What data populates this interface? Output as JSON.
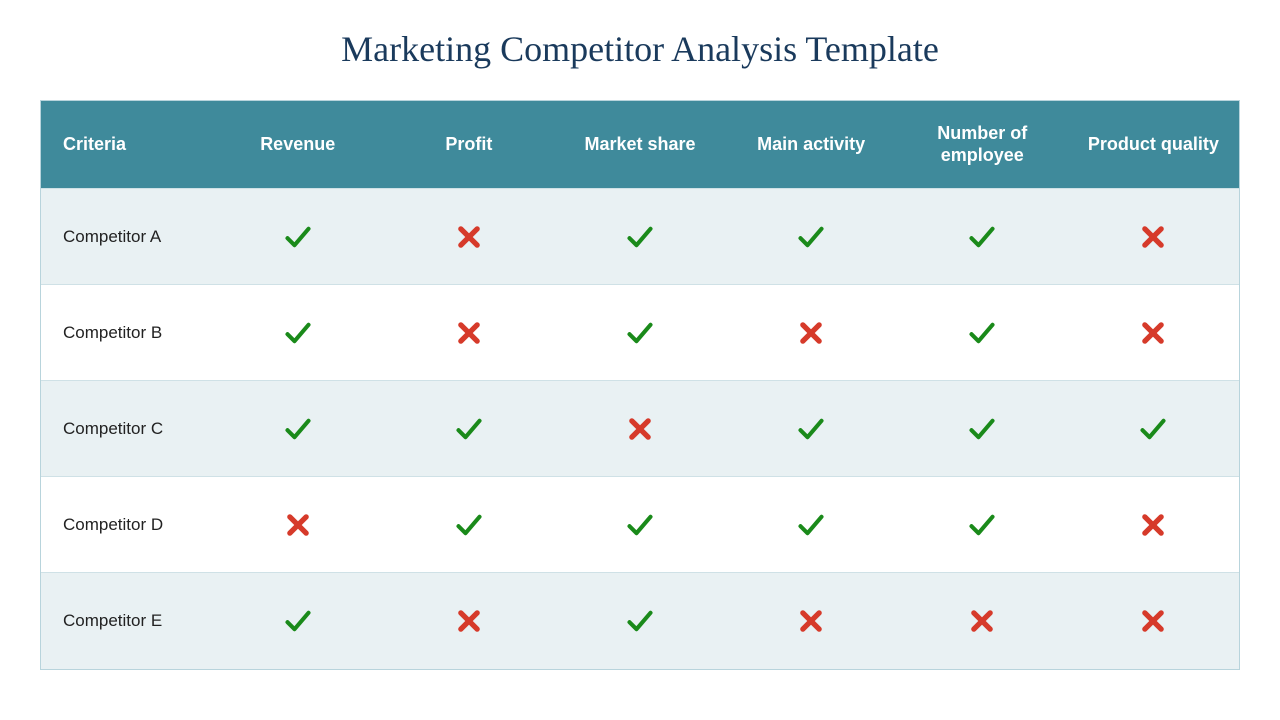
{
  "title": "Marketing Competitor Analysis Template",
  "table": {
    "type": "table",
    "header_bg": "#3f8a9b",
    "header_text_color": "#ffffff",
    "row_odd_bg": "#e9f1f3",
    "row_even_bg": "#ffffff",
    "border_color": "#cfe1e6",
    "check_color": "#1a8a1a",
    "cross_color": "#d63a2a",
    "header_fontsize": 18,
    "cell_fontsize": 17,
    "columns": [
      "Criteria",
      "Revenue",
      "Profit",
      "Market share",
      "Main activity",
      "Number of employee",
      "Product quality"
    ],
    "rows": [
      {
        "label": "Competitor A",
        "values": [
          "check",
          "cross",
          "check",
          "check",
          "check",
          "cross"
        ]
      },
      {
        "label": "Competitor B",
        "values": [
          "check",
          "cross",
          "check",
          "cross",
          "check",
          "cross"
        ]
      },
      {
        "label": "Competitor C",
        "values": [
          "check",
          "check",
          "cross",
          "check",
          "check",
          "check"
        ]
      },
      {
        "label": "Competitor D",
        "values": [
          "cross",
          "check",
          "check",
          "check",
          "check",
          "cross"
        ]
      },
      {
        "label": "Competitor E",
        "values": [
          "check",
          "cross",
          "check",
          "cross",
          "cross",
          "cross"
        ]
      }
    ]
  },
  "title_color": "#1a3a5c",
  "title_fontsize": 36,
  "background_color": "#ffffff"
}
